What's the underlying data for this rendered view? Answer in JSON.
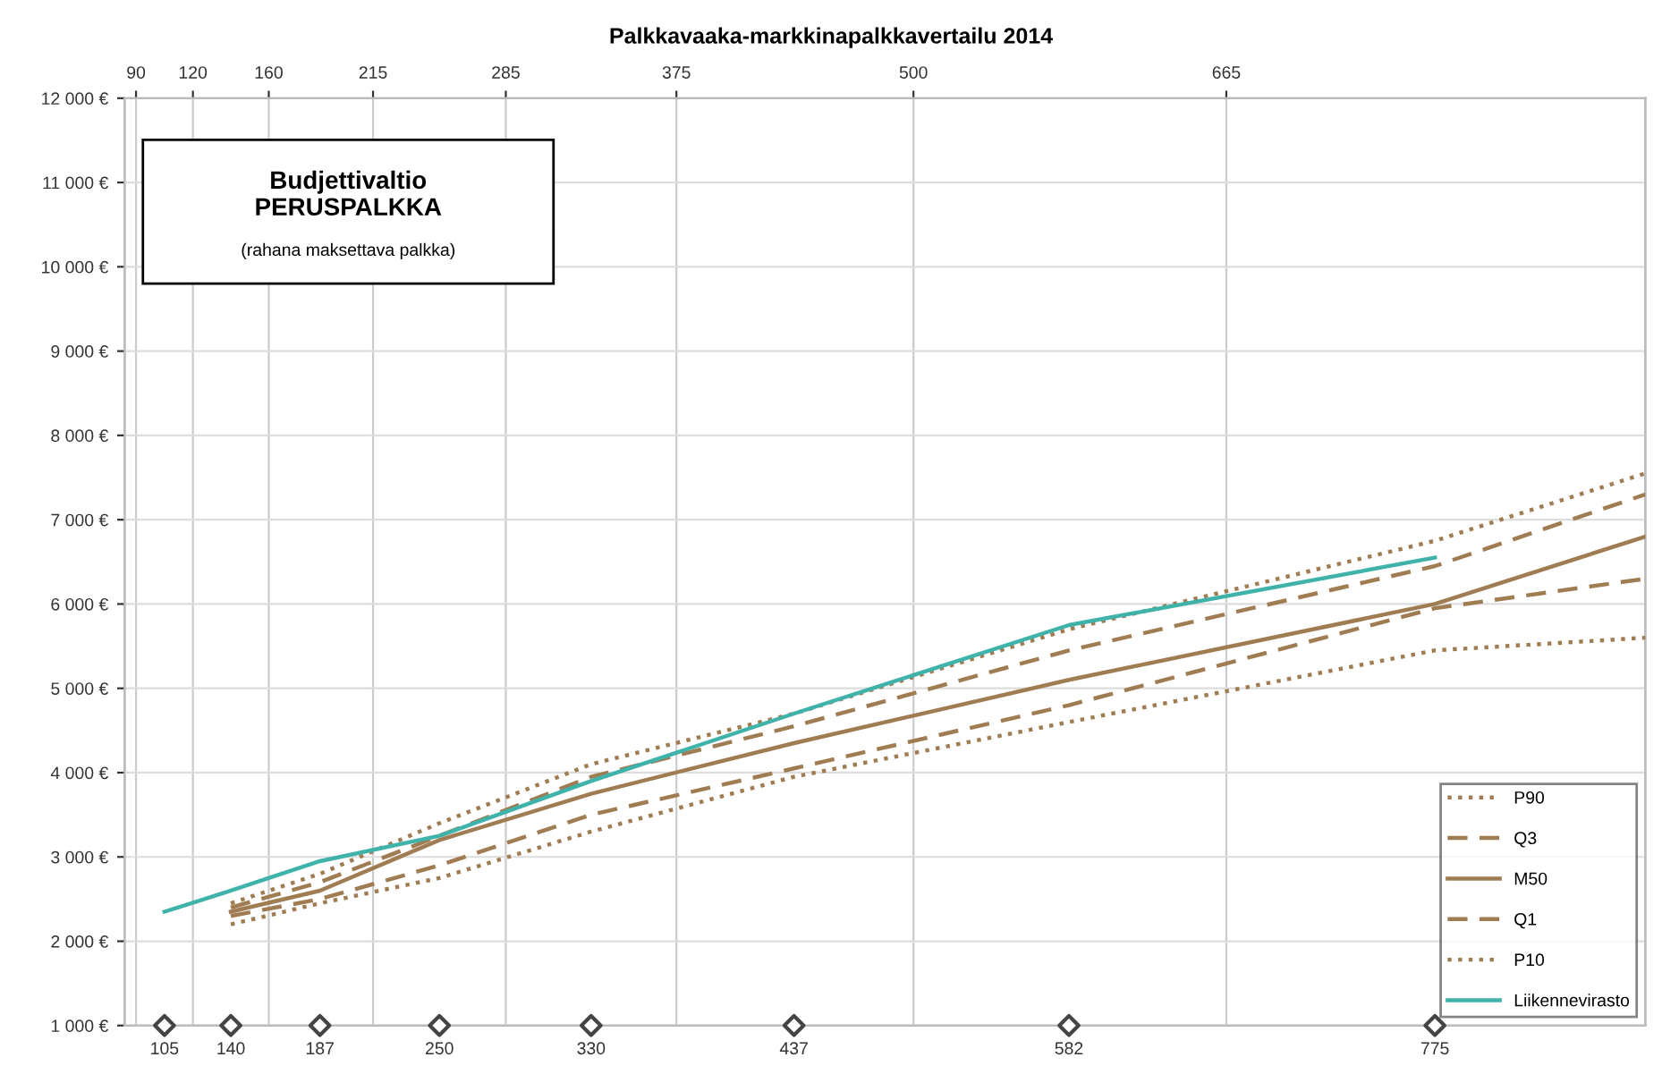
{
  "chart_data": {
    "type": "line",
    "title": "Palkkavaaka-markkinapalkkavertailu 2014",
    "annotations": [
      "Budjettivaltio",
      "PERUSPALKKA",
      "(rahana maksettava palkka)"
    ],
    "xlim": [
      84,
      886
    ],
    "ylim": [
      1000,
      12000
    ],
    "xticks": [
      105,
      140,
      187,
      250,
      330,
      437,
      582,
      775
    ],
    "x2lim": [
      84,
      886
    ],
    "x2ticks": [
      90,
      120,
      160,
      215,
      285,
      375,
      500,
      665
    ],
    "yticks": [
      {
        "value": 1000,
        "label": "1 000 €"
      },
      {
        "value": 2000,
        "label": "2 000 €"
      },
      {
        "value": 3000,
        "label": "3 000 €"
      },
      {
        "value": 4000,
        "label": "4 000 €"
      },
      {
        "value": 5000,
        "label": "5 000 €"
      },
      {
        "value": 6000,
        "label": "6 000 €"
      },
      {
        "value": 7000,
        "label": "7 000 €"
      },
      {
        "value": 8000,
        "label": "8 000 €"
      },
      {
        "value": 9000,
        "label": "9 000 €"
      },
      {
        "value": 10000,
        "label": "10 000 €"
      },
      {
        "value": 11000,
        "label": "11 000 €"
      },
      {
        "value": 12000,
        "label": "12 000 €"
      }
    ],
    "grid": true,
    "legend": "bottom right",
    "series": [
      {
        "name": "P90",
        "color": "#a07c52",
        "line_style": "dotted",
        "x": [
          140,
          187,
          250,
          330,
          437,
          582,
          775,
          886
        ],
        "values": [
          2450,
          2800,
          3400,
          4100,
          4700,
          5700,
          6750,
          7550
        ]
      },
      {
        "name": "Q3",
        "color": "#a07c52",
        "line_style": "dashed",
        "x": [
          140,
          187,
          250,
          330,
          437,
          582,
          775,
          886
        ],
        "values": [
          2400,
          2700,
          3250,
          3950,
          4550,
          5450,
          6450,
          7300
        ]
      },
      {
        "name": "M50",
        "color": "#a07c52",
        "line_style": "solid",
        "x": [
          140,
          187,
          250,
          330,
          437,
          582,
          775,
          886
        ],
        "values": [
          2350,
          2600,
          3200,
          3750,
          4350,
          5100,
          6000,
          6800
        ]
      },
      {
        "name": "Q1",
        "color": "#a07c52",
        "line_style": "dashed",
        "x": [
          140,
          187,
          250,
          330,
          437,
          582,
          775,
          886
        ],
        "values": [
          2300,
          2500,
          2900,
          3500,
          4050,
          4800,
          5950,
          6300
        ]
      },
      {
        "name": "P10",
        "color": "#a07c52",
        "line_style": "dotted",
        "x": [
          140,
          187,
          250,
          330,
          437,
          582,
          775,
          886
        ],
        "values": [
          2200,
          2450,
          2750,
          3300,
          3950,
          4600,
          5450,
          5600
        ]
      },
      {
        "name": "Liikennevirasto",
        "color": "#3fb3aa",
        "line_style": "solid",
        "x": [
          105,
          140,
          187,
          250,
          330,
          437,
          582,
          775
        ],
        "values": [
          2350,
          2600,
          2950,
          3250,
          3900,
          4700,
          5750,
          6550
        ]
      },
      {
        "type": "scatter",
        "marker": "diamond",
        "color": "#444444",
        "x": [
          105,
          140,
          187,
          250,
          330,
          437,
          582,
          775
        ],
        "values": [
          1000,
          1000,
          1000,
          1000,
          1000,
          1000,
          1000,
          1000
        ]
      }
    ]
  }
}
